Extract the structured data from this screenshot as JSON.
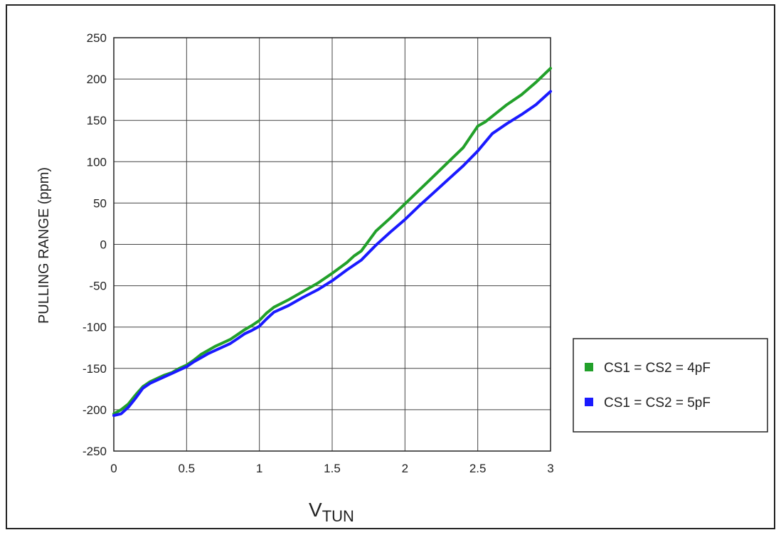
{
  "chart_data": {
    "type": "line",
    "title": "",
    "xlabel": "V",
    "xlabel_sub": "TUN",
    "ylabel": "PULLING RANGE (ppm)",
    "xlim": [
      0,
      3
    ],
    "ylim": [
      -250,
      250
    ],
    "xticks": [
      0,
      0.5,
      1,
      1.5,
      2,
      2.5,
      3
    ],
    "xtick_labels": [
      "0",
      "0.5",
      "1",
      "1.5",
      "2",
      "2.5",
      "3"
    ],
    "yticks": [
      250,
      200,
      150,
      100,
      50,
      0,
      -50,
      -100,
      -150,
      -200,
      -250
    ],
    "ytick_labels": [
      "250",
      "200",
      "150",
      "100",
      "50",
      "0",
      "-50",
      "-100",
      "-150",
      "-200",
      "-250"
    ],
    "grid": true,
    "legend_position": "right, outside plot",
    "series": [
      {
        "name": "CS1 = CS2 = 4pF",
        "color": "#22a02a",
        "x": [
          0,
          0.05,
          0.1,
          0.15,
          0.2,
          0.25,
          0.3,
          0.35,
          0.4,
          0.45,
          0.5,
          0.55,
          0.6,
          0.65,
          0.7,
          0.75,
          0.8,
          0.85,
          0.9,
          0.95,
          1.0,
          1.05,
          1.1,
          1.2,
          1.3,
          1.4,
          1.5,
          1.6,
          1.65,
          1.7,
          1.8,
          1.9,
          2.0,
          2.1,
          2.2,
          2.3,
          2.4,
          2.5,
          2.55,
          2.6,
          2.7,
          2.8,
          2.9,
          3.0
        ],
        "y": [
          -205,
          -200,
          -193,
          -182,
          -172,
          -166,
          -162,
          -158,
          -155,
          -150,
          -146,
          -140,
          -133,
          -128,
          -123,
          -119,
          -115,
          -109,
          -103,
          -98,
          -92,
          -83,
          -76,
          -67,
          -57,
          -47,
          -35,
          -22,
          -14,
          -8,
          16,
          32,
          49,
          66,
          83,
          100,
          117,
          143,
          148,
          155,
          169,
          181,
          196,
          213
        ]
      },
      {
        "name": "CS1 = CS2 = 5pF",
        "color": "#1a1aff",
        "x": [
          0,
          0.05,
          0.1,
          0.15,
          0.2,
          0.25,
          0.3,
          0.35,
          0.4,
          0.45,
          0.5,
          0.55,
          0.6,
          0.65,
          0.7,
          0.75,
          0.8,
          0.85,
          0.9,
          0.95,
          1.0,
          1.05,
          1.1,
          1.2,
          1.3,
          1.4,
          1.5,
          1.6,
          1.7,
          1.8,
          1.9,
          2.0,
          2.1,
          2.2,
          2.3,
          2.4,
          2.5,
          2.6,
          2.7,
          2.8,
          2.9,
          3.0
        ],
        "y": [
          -207,
          -205,
          -197,
          -186,
          -174,
          -168,
          -164,
          -160,
          -156,
          -152,
          -148,
          -142,
          -137,
          -132,
          -128,
          -124,
          -120,
          -114,
          -108,
          -104,
          -99,
          -90,
          -82,
          -74,
          -64,
          -55,
          -44,
          -31,
          -19,
          -1,
          15,
          30,
          47,
          63,
          79,
          95,
          113,
          134,
          146,
          157,
          169,
          185
        ]
      }
    ]
  }
}
